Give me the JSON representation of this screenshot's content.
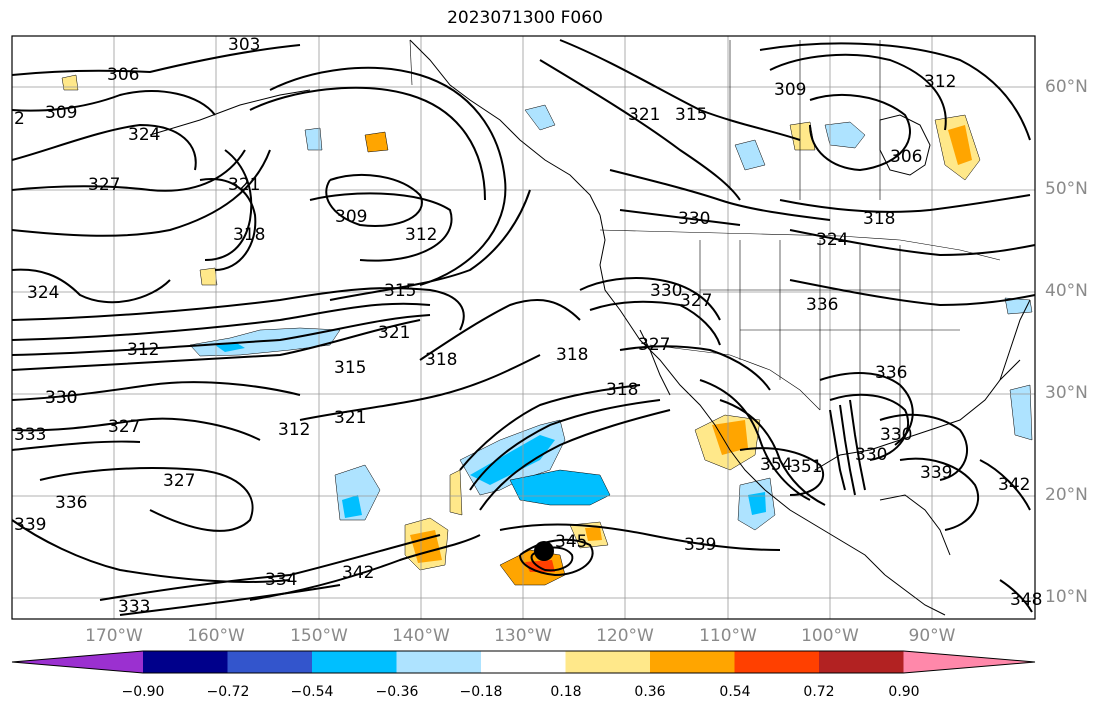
{
  "title": "2023071300 F060",
  "lat_labels": [
    "60°N",
    "50°N",
    "40°N",
    "30°N",
    "20°N",
    "10°N"
  ],
  "lon_labels": [
    "170°W",
    "160°W",
    "150°W",
    "140°W",
    "130°W",
    "120°W",
    "110°W",
    "100°W",
    "90°W"
  ],
  "colorbar": {
    "ticks": [
      "−0.90",
      "−0.72",
      "−0.54",
      "−0.36",
      "−0.18",
      "0.18",
      "0.36",
      "0.54",
      "0.72",
      "0.90"
    ],
    "colors": [
      "#9b30d0",
      "#00008b",
      "#3355cc",
      "#00bfff",
      "#aee3ff",
      "#ffffff",
      "#ffe88a",
      "#ffa500",
      "#ff4000",
      "#b22222",
      "#ff88aa"
    ]
  },
  "contour_labels": [
    "303",
    "306",
    "309",
    "324",
    "327",
    "321",
    "318",
    "309",
    "312",
    "315",
    "324",
    "312",
    "321",
    "315",
    "318",
    "330",
    "327",
    "312",
    "321",
    "330",
    "333",
    "327",
    "336",
    "339",
    "334",
    "333",
    "342",
    "345",
    "339",
    "321",
    "315",
    "309",
    "312",
    "306",
    "318",
    "324",
    "330",
    "330",
    "327",
    "327",
    "336",
    "318",
    "318",
    "351",
    "354",
    "330",
    "336",
    "330",
    "339",
    "342",
    "348",
    "2"
  ],
  "storm_marker": "hurricane-center"
}
